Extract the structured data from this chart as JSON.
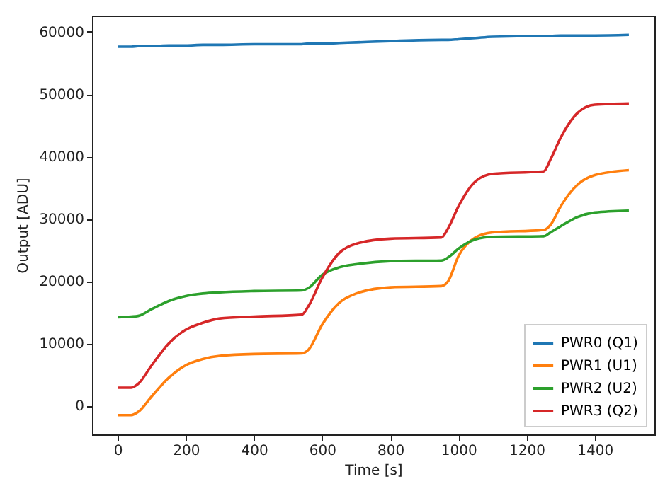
{
  "chart_data": {
    "type": "line",
    "xlabel": "Time [s]",
    "ylabel": "Output [ADU]",
    "xlim": [
      -75,
      1575
    ],
    "ylim": [
      -4600,
      62600
    ],
    "xticks": [
      0,
      200,
      400,
      600,
      800,
      1000,
      1200,
      1400
    ],
    "yticks": [
      0,
      10000,
      20000,
      30000,
      40000,
      50000,
      60000
    ],
    "grid": false,
    "legend": "bottom right",
    "x": [
      0,
      40,
      60,
      100,
      150,
      200,
      250,
      300,
      400,
      540,
      560,
      600,
      650,
      700,
      800,
      950,
      970,
      1000,
      1050,
      1100,
      1250,
      1270,
      1300,
      1350,
      1400,
      1500
    ],
    "series": [
      {
        "name": "PWR0 (Q1)",
        "color": "#1f77b4",
        "values": [
          57600,
          57600,
          57700,
          57700,
          57800,
          57800,
          57900,
          57900,
          58000,
          58000,
          58100,
          58100,
          58200,
          58300,
          58500,
          58700,
          58700,
          58800,
          59000,
          59200,
          59300,
          59300,
          59400,
          59400,
          59400,
          59500
        ]
      },
      {
        "name": "PWR1 (U1)",
        "color": "#ff7f0e",
        "values": [
          -1500,
          -1500,
          -1000,
          1500,
          4500,
          6500,
          7500,
          8000,
          8300,
          8400,
          9000,
          13000,
          16500,
          18000,
          19000,
          19200,
          20000,
          24000,
          27000,
          27800,
          28200,
          29000,
          32000,
          35500,
          37000,
          37800
        ]
      },
      {
        "name": "PWR2 (U2)",
        "color": "#2ca02c",
        "values": [
          14200,
          14300,
          14400,
          15500,
          16800,
          17600,
          18000,
          18200,
          18400,
          18500,
          18900,
          21000,
          22200,
          22700,
          23200,
          23300,
          23800,
          25200,
          26700,
          27100,
          27200,
          27800,
          28800,
          30300,
          31000,
          31300
        ]
      },
      {
        "name": "PWR3 (Q2)",
        "color": "#d62728",
        "values": [
          2900,
          2900,
          3500,
          6500,
          10000,
          12200,
          13300,
          14000,
          14300,
          14600,
          16000,
          20500,
          24500,
          26000,
          26800,
          27000,
          28500,
          32000,
          36000,
          37200,
          37600,
          39500,
          43000,
          47000,
          48300,
          48500
        ]
      }
    ]
  }
}
